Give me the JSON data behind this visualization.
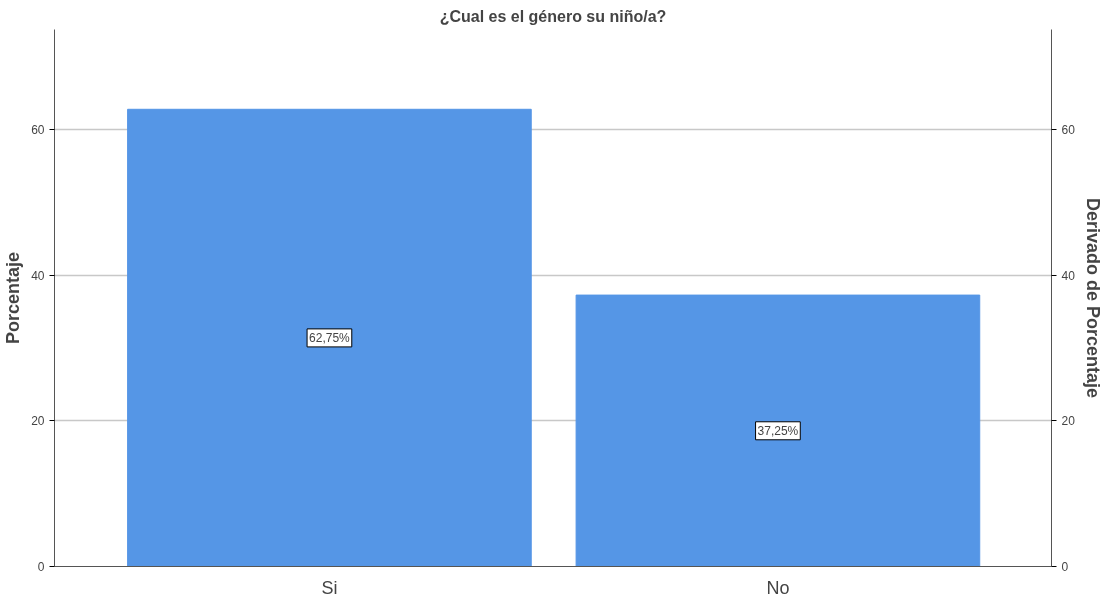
{
  "chart_data": {
    "type": "bar",
    "title": "¿Cual es el género su niño/a?",
    "ylabel": "Porcentaje",
    "y2label": "Derivado de Porcentaje",
    "categories": [
      "Si",
      "No"
    ],
    "values": [
      62.75,
      37.25
    ],
    "value_labels": [
      "62,75%",
      "37,25%"
    ],
    "color": "#5596e6",
    "ylim": [
      0,
      73.7
    ],
    "yticks": [
      0,
      20,
      40,
      60
    ],
    "y2lim": [
      0,
      73.7
    ],
    "y2ticks": [
      0,
      20,
      40,
      60
    ],
    "grid": "y"
  }
}
